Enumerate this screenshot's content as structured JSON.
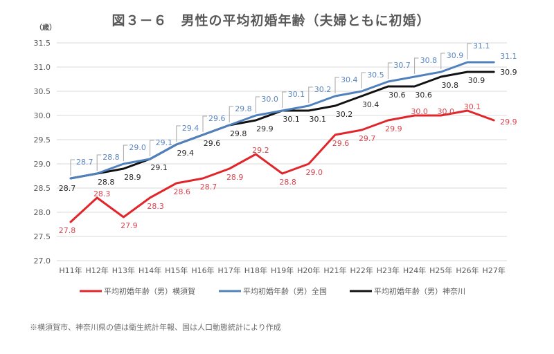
{
  "chart_data": {
    "type": "line",
    "title": "図３－６　男性の平均初婚年齢（夫婦ともに初婚）",
    "ylabel": "（歳）",
    "xlabel": "",
    "categories": [
      "H11年",
      "H12年",
      "H13年",
      "H14年",
      "H15年",
      "H16年",
      "H17年",
      "H18年",
      "H19年",
      "H20年",
      "H21年",
      "H22年",
      "H23年",
      "H24年",
      "H25年",
      "H26年",
      "H27年"
    ],
    "yticks": [
      "27.0",
      "27.5",
      "28.0",
      "28.5",
      "29.0",
      "29.5",
      "30.0",
      "30.5",
      "31.0",
      "31.5"
    ],
    "ylim": [
      27.0,
      31.5
    ],
    "grid": true,
    "legend_position": "bottom",
    "series": [
      {
        "name": "平均初婚年齢（男）横須賀",
        "color": "#e0262b",
        "label_color": "#d9454f",
        "values": [
          27.8,
          28.3,
          27.9,
          28.3,
          28.6,
          28.7,
          28.9,
          29.2,
          28.8,
          29.0,
          29.6,
          29.7,
          29.9,
          30.0,
          30.0,
          30.1,
          29.9
        ],
        "data_labels": [
          "27.8",
          "28.3",
          "27.9",
          "28.3",
          "28.6",
          "28.7",
          "28.9",
          "29.2",
          "28.8",
          "29.0",
          "29.6",
          "29.7",
          "29.9",
          "30.0",
          "30.0",
          "30.1",
          "29.9"
        ]
      },
      {
        "name": "平均初婚年齢（男）全国",
        "color": "#4f81bd",
        "label_color": "#5b86c0",
        "values": [
          28.7,
          28.8,
          29.0,
          29.1,
          29.4,
          29.6,
          29.8,
          30.0,
          30.1,
          30.2,
          30.4,
          30.5,
          30.7,
          30.8,
          30.9,
          31.1,
          31.1
        ],
        "data_labels": [
          "28.7",
          "28.8",
          "29.0",
          "29.1",
          "29.4",
          "29.6",
          "29.8",
          "30.0",
          "30.1",
          "30.2",
          "30.4",
          "30.5",
          "30.7",
          "30.8",
          "30.9",
          "31.1",
          "31.1"
        ]
      },
      {
        "name": "平均初婚年齢（男）神奈川",
        "color": "#111111",
        "label_color": "#262626",
        "values": [
          28.7,
          28.8,
          28.9,
          29.1,
          29.4,
          29.6,
          29.8,
          29.9,
          30.1,
          30.1,
          30.2,
          30.4,
          30.6,
          30.6,
          30.8,
          30.9,
          30.9
        ],
        "data_labels": [
          "28.7",
          "28.8",
          "28.9",
          "29.1",
          "29.4",
          "29.6",
          "29.8",
          "29.9",
          "30.1",
          "30.1",
          "30.2",
          "30.4",
          "30.6",
          "30.6",
          "30.8",
          "30.9",
          "30.9"
        ]
      }
    ],
    "footnote": "※横須賀市、神奈川県の値は衛生統計年報、国は人口動態統計により作成"
  }
}
